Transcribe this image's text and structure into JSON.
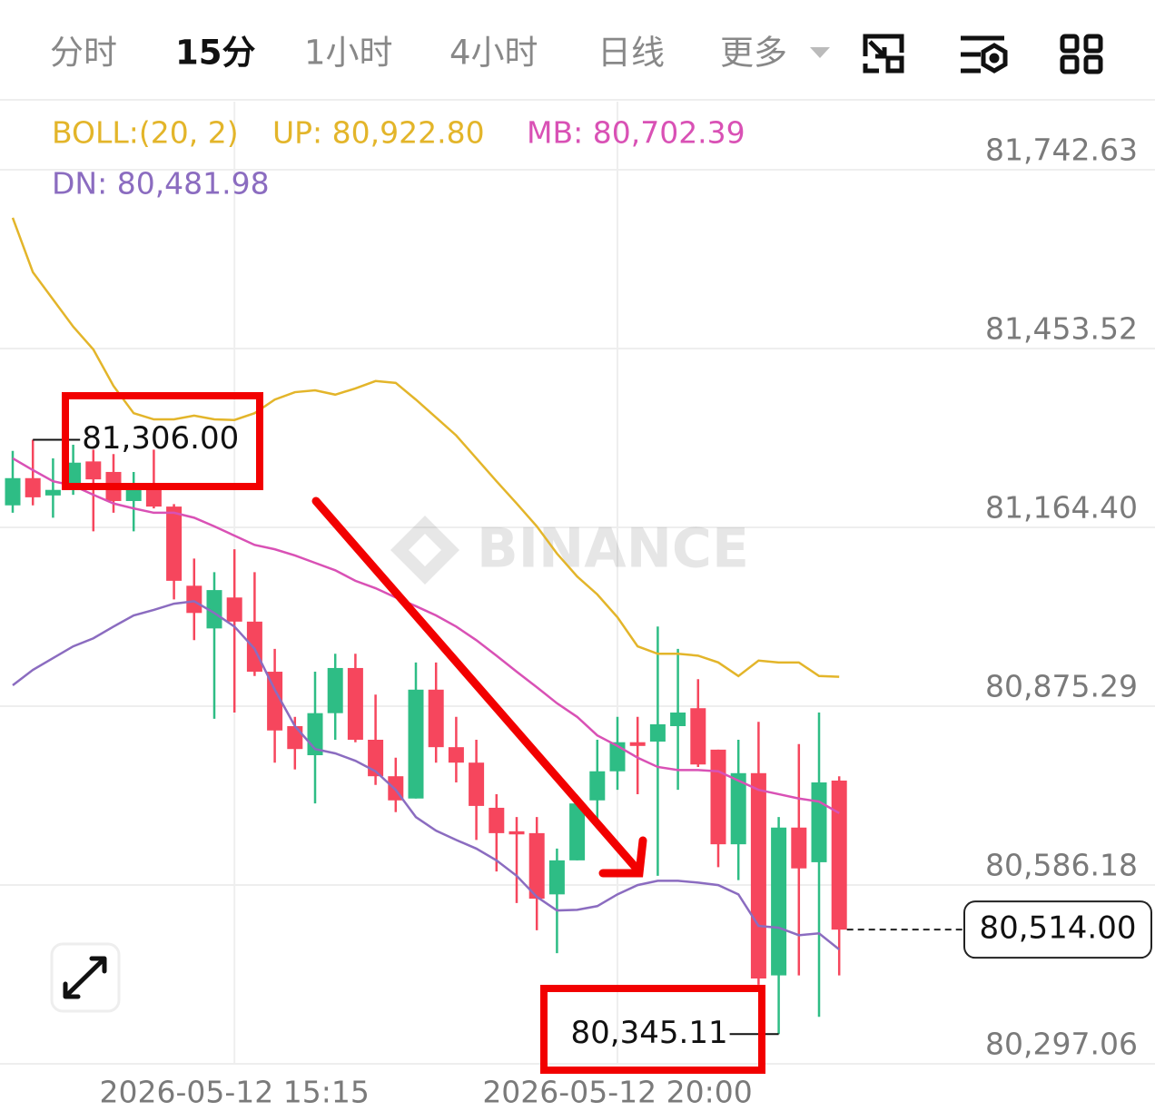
{
  "tabs": [
    "分时",
    "15分",
    "1小时",
    "4小时",
    "日线",
    "更多"
  ],
  "active_tab": 1,
  "chart_data": {
    "type": "candlestick",
    "watermark": "BINANCE",
    "up_color": "#2ebd85",
    "down_color": "#f6465d",
    "categories": [
      null,
      null,
      null,
      null,
      null,
      null,
      null,
      null,
      null,
      null,
      null,
      "2026-05-12 15:15",
      null,
      null,
      null,
      null,
      null,
      null,
      null,
      null,
      null,
      null,
      null,
      null,
      null,
      null,
      null,
      null,
      null,
      null,
      "2026-05-12 20:00",
      null,
      null,
      null,
      null,
      null,
      null,
      null,
      null,
      null,
      null,
      null
    ],
    "open": [
      81200,
      81244,
      81216,
      81225,
      81271,
      81254,
      81207,
      81225,
      81198,
      81070,
      81001,
      81051,
      81012,
      80931,
      80843,
      80796,
      80864,
      80937,
      80821,
      80762,
      80726,
      80902,
      80809,
      80784,
      80711,
      80673,
      80670,
      80571,
      80626,
      80723,
      80770,
      80817,
      80818,
      80843,
      80872,
      80805,
      80652,
      80767,
      80440,
      80679,
      80623,
      80755
    ],
    "high": [
      81288,
      81306,
      81276,
      81298,
      81290,
      81283,
      81254,
      81290,
      81202,
      81114,
      81092,
      81129,
      81092,
      80968,
      80858,
      80931,
      80960,
      80960,
      80894,
      80792,
      80946,
      80946,
      80858,
      80821,
      80733,
      80696,
      80696,
      80645,
      80726,
      80821,
      80858,
      80858,
      81004,
      80968,
      80919,
      80805,
      80821,
      80850,
      80696,
      80814,
      80865,
      80762
    ],
    "low": [
      81188,
      81200,
      81180,
      81217,
      81158,
      81188,
      81158,
      81195,
      81048,
      80982,
      80855,
      80865,
      80924,
      80784,
      80773,
      80718,
      80821,
      80817,
      80748,
      80704,
      80726,
      80784,
      80752,
      80659,
      80608,
      80557,
      80513,
      80476,
      80626,
      80689,
      80740,
      80733,
      80601,
      80740,
      80777,
      80615,
      80594,
      80425,
      80345.11,
      80440,
      80373,
      80440
    ],
    "close": [
      81244,
      81213,
      81225,
      81269,
      81242,
      81207,
      81225,
      81198,
      81078,
      81026,
      81063,
      81012,
      80931,
      80836,
      80806,
      80864,
      80937,
      80821,
      80762,
      80723,
      80902,
      80809,
      80784,
      80714,
      80670,
      80668,
      80564,
      80626,
      80718,
      80770,
      80817,
      80811,
      80846,
      80865,
      80781,
      80652,
      80767,
      80435,
      80679,
      80613,
      80752,
      80514
    ],
    "max_label": "81,306.00",
    "min_label": "80,345.11",
    "last_price_label": "80,514.00",
    "indicator": {
      "label": "BOLL:(20, 2)",
      "series": [
        {
          "name": "UP: 80,922.80",
          "color": "#e3b52a",
          "values": [
            81665,
            81577,
            81533,
            81489,
            81452,
            81393,
            81349,
            81339,
            81339,
            81345,
            81339,
            81338,
            81349,
            81371,
            81383,
            81386,
            81379,
            81389,
            81401,
            81398,
            81371,
            81342,
            81313,
            81276,
            81239,
            81203,
            81166,
            81122,
            81085,
            81056,
            81019,
            80972,
            80960,
            80960,
            80957,
            80946,
            80924,
            80949,
            80946,
            80946,
            80924,
            80922.8
          ]
        },
        {
          "name": "MB: 80,702.39",
          "color": "#d951b5",
          "values": [
            81276,
            81257,
            81239,
            81232,
            81217,
            81203,
            81195,
            81188,
            81188,
            81180,
            81166,
            81151,
            81136,
            81129,
            81119,
            81107,
            81095,
            81078,
            81066,
            81051,
            81037,
            81022,
            81004,
            80982,
            80957,
            80931,
            80906,
            80880,
            80858,
            80828,
            80811,
            80792,
            80777,
            80772,
            80772,
            80770,
            80755,
            80740,
            80733,
            80726,
            80721,
            80702.39
          ]
        },
        {
          "name": "DN: 80,481.98",
          "color": "#8b6cc0",
          "values": [
            80909,
            80934,
            80953,
            80972,
            80985,
            81004,
            81022,
            81031,
            81041,
            81045,
            81026,
            81004,
            80968,
            80902,
            80843,
            80806,
            80799,
            80787,
            80770,
            80740,
            80696,
            80674,
            80659,
            80645,
            80626,
            80601,
            80567,
            80545,
            80546,
            80552,
            80571,
            80586,
            80593,
            80593,
            80590,
            80586,
            80571,
            80520,
            80517,
            80505,
            80508,
            80481.98
          ]
        }
      ]
    },
    "ylim": [
      80297.06,
      81852.7
    ],
    "yticks": [
      {
        "value": 80297.06,
        "label": "80,297.06"
      },
      {
        "value": 80586.18,
        "label": "80,586.18"
      },
      {
        "value": 80875.29,
        "label": "80,875.29"
      },
      {
        "value": 81164.4,
        "label": "81,164.40"
      },
      {
        "value": 81453.52,
        "label": "81,453.52"
      },
      {
        "value": 81742.63,
        "label": "81,742.63"
      }
    ],
    "grid": true
  }
}
